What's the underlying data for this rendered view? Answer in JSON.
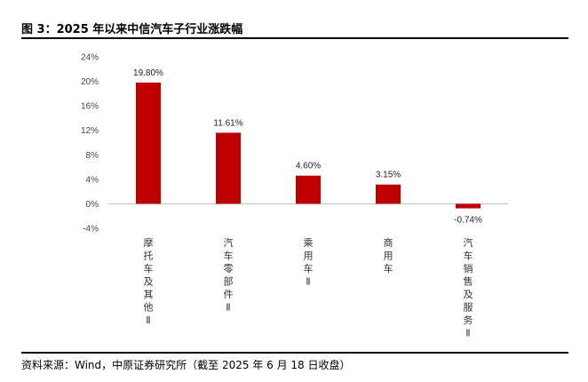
{
  "figure": {
    "title": "图 3：2025 年以来中信汽车子行业涨跌幅",
    "source": "资料来源：Wind，中原证券研究所（截至 2025 年 6 月 18 日收盘）"
  },
  "chart_data": {
    "type": "bar",
    "categories": [
      "摩托车及其他Ⅱ",
      "汽车零部件Ⅱ",
      "乘用车Ⅱ",
      "商用车",
      "汽车销售及服务Ⅱ"
    ],
    "values": [
      19.8,
      11.61,
      4.6,
      3.15,
      -0.74
    ],
    "value_labels": [
      "19.80%",
      "11.61%",
      "4.60%",
      "3.15%",
      "-0.74%"
    ],
    "ylim": [
      -4,
      24
    ],
    "yticks": [
      -4,
      0,
      4,
      8,
      12,
      16,
      20,
      24
    ],
    "ytick_labels": [
      "-4%",
      "0%",
      "4%",
      "8%",
      "12%",
      "16%",
      "20%",
      "24%"
    ],
    "bar_color": "#C00000",
    "grid": false,
    "legend": "none"
  }
}
